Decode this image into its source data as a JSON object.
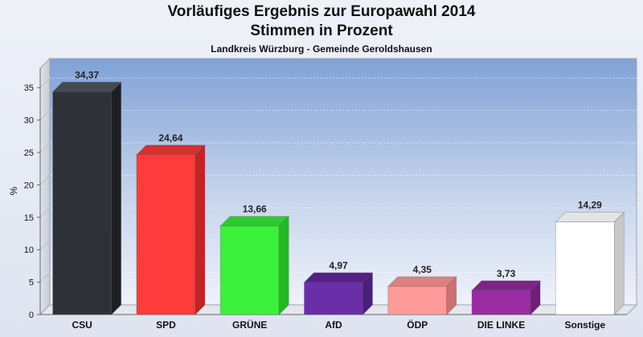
{
  "header": {
    "title_line1": "Vorläufiges Ergebnis zur Europawahl 2014",
    "title_line2": "Stimmen in Prozent",
    "subtitle": "Landkreis Würzburg - Gemeinde Geroldshausen"
  },
  "chart_data": {
    "type": "bar",
    "title": "Vorläufiges Ergebnis zur Europawahl 2014 Stimmen in Prozent",
    "subtitle": "Landkreis Würzburg - Gemeinde Geroldshausen",
    "xlabel": "",
    "ylabel": "%",
    "ylim": [
      0,
      38
    ],
    "yticks": [
      0,
      5,
      10,
      15,
      20,
      25,
      30,
      35
    ],
    "grid": true,
    "categories": [
      "CSU",
      "SPD",
      "GRÜNE",
      "AfD",
      "ÖDP",
      "DIE LINKE",
      "Sonstige"
    ],
    "values": [
      34.37,
      24.64,
      13.66,
      4.97,
      4.35,
      3.73,
      14.29
    ],
    "value_labels": [
      "34,37",
      "24,64",
      "13,66",
      "4,97",
      "4,35",
      "3,73",
      "14,29"
    ],
    "colors": [
      "#2e3138",
      "#ff3b3b",
      "#3af03a",
      "#6a2ea8",
      "#ff9a9a",
      "#9b2ba3",
      "#ffffff"
    ],
    "side_colors": [
      "#1c1e22",
      "#c02424",
      "#24b824",
      "#48207a",
      "#cc7070",
      "#6e1f76",
      "#c8c8c8"
    ],
    "top_colors": [
      "#45494f",
      "#d63030",
      "#30c830",
      "#552088",
      "#dc8080",
      "#7e2486",
      "#e4e4e4"
    ]
  }
}
